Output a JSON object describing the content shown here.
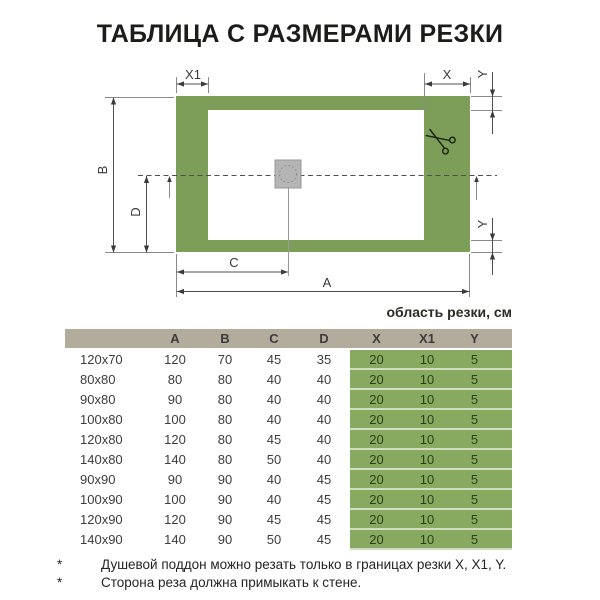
{
  "title": "ТАБЛИЦА С РАЗМЕРАМИ РЕЗКИ",
  "colors": {
    "frame_green": "#7d9e58",
    "table_green": "#88a960",
    "header_tan": "#b3ab9b",
    "row_separator": "#d2ddbd",
    "drain_gray": "#b5b5b5"
  },
  "diagram": {
    "labels": {
      "x1": "X1",
      "x": "X",
      "y_top": "Y",
      "y_bottom": "Y",
      "b": "B",
      "d": "D",
      "c": "C",
      "a": "A"
    }
  },
  "table": {
    "area_label": "область резки, см",
    "columns": [
      "",
      "A",
      "B",
      "C",
      "D",
      "X",
      "X1",
      "Y"
    ],
    "rows": [
      [
        "120x70",
        "120",
        "70",
        "45",
        "35",
        "20",
        "10",
        "5"
      ],
      [
        "80x80",
        "80",
        "80",
        "40",
        "40",
        "20",
        "10",
        "5"
      ],
      [
        "90x80",
        "90",
        "80",
        "40",
        "40",
        "20",
        "10",
        "5"
      ],
      [
        "100x80",
        "100",
        "80",
        "40",
        "40",
        "20",
        "10",
        "5"
      ],
      [
        "120x80",
        "120",
        "80",
        "45",
        "40",
        "20",
        "10",
        "5"
      ],
      [
        "140x80",
        "140",
        "80",
        "50",
        "40",
        "20",
        "10",
        "5"
      ],
      [
        "90x90",
        "90",
        "90",
        "40",
        "45",
        "20",
        "10",
        "5"
      ],
      [
        "100x90",
        "100",
        "90",
        "40",
        "45",
        "20",
        "10",
        "5"
      ],
      [
        "120x90",
        "120",
        "90",
        "45",
        "45",
        "20",
        "10",
        "5"
      ],
      [
        "140x90",
        "140",
        "90",
        "50",
        "45",
        "20",
        "10",
        "5"
      ]
    ]
  },
  "footnotes": [
    {
      "marker": "*",
      "text": "Душевой поддон можно резать только в границах резки X, X1, Y."
    },
    {
      "marker": "*",
      "text": "Сторона реза должна примыкать к стене."
    }
  ]
}
